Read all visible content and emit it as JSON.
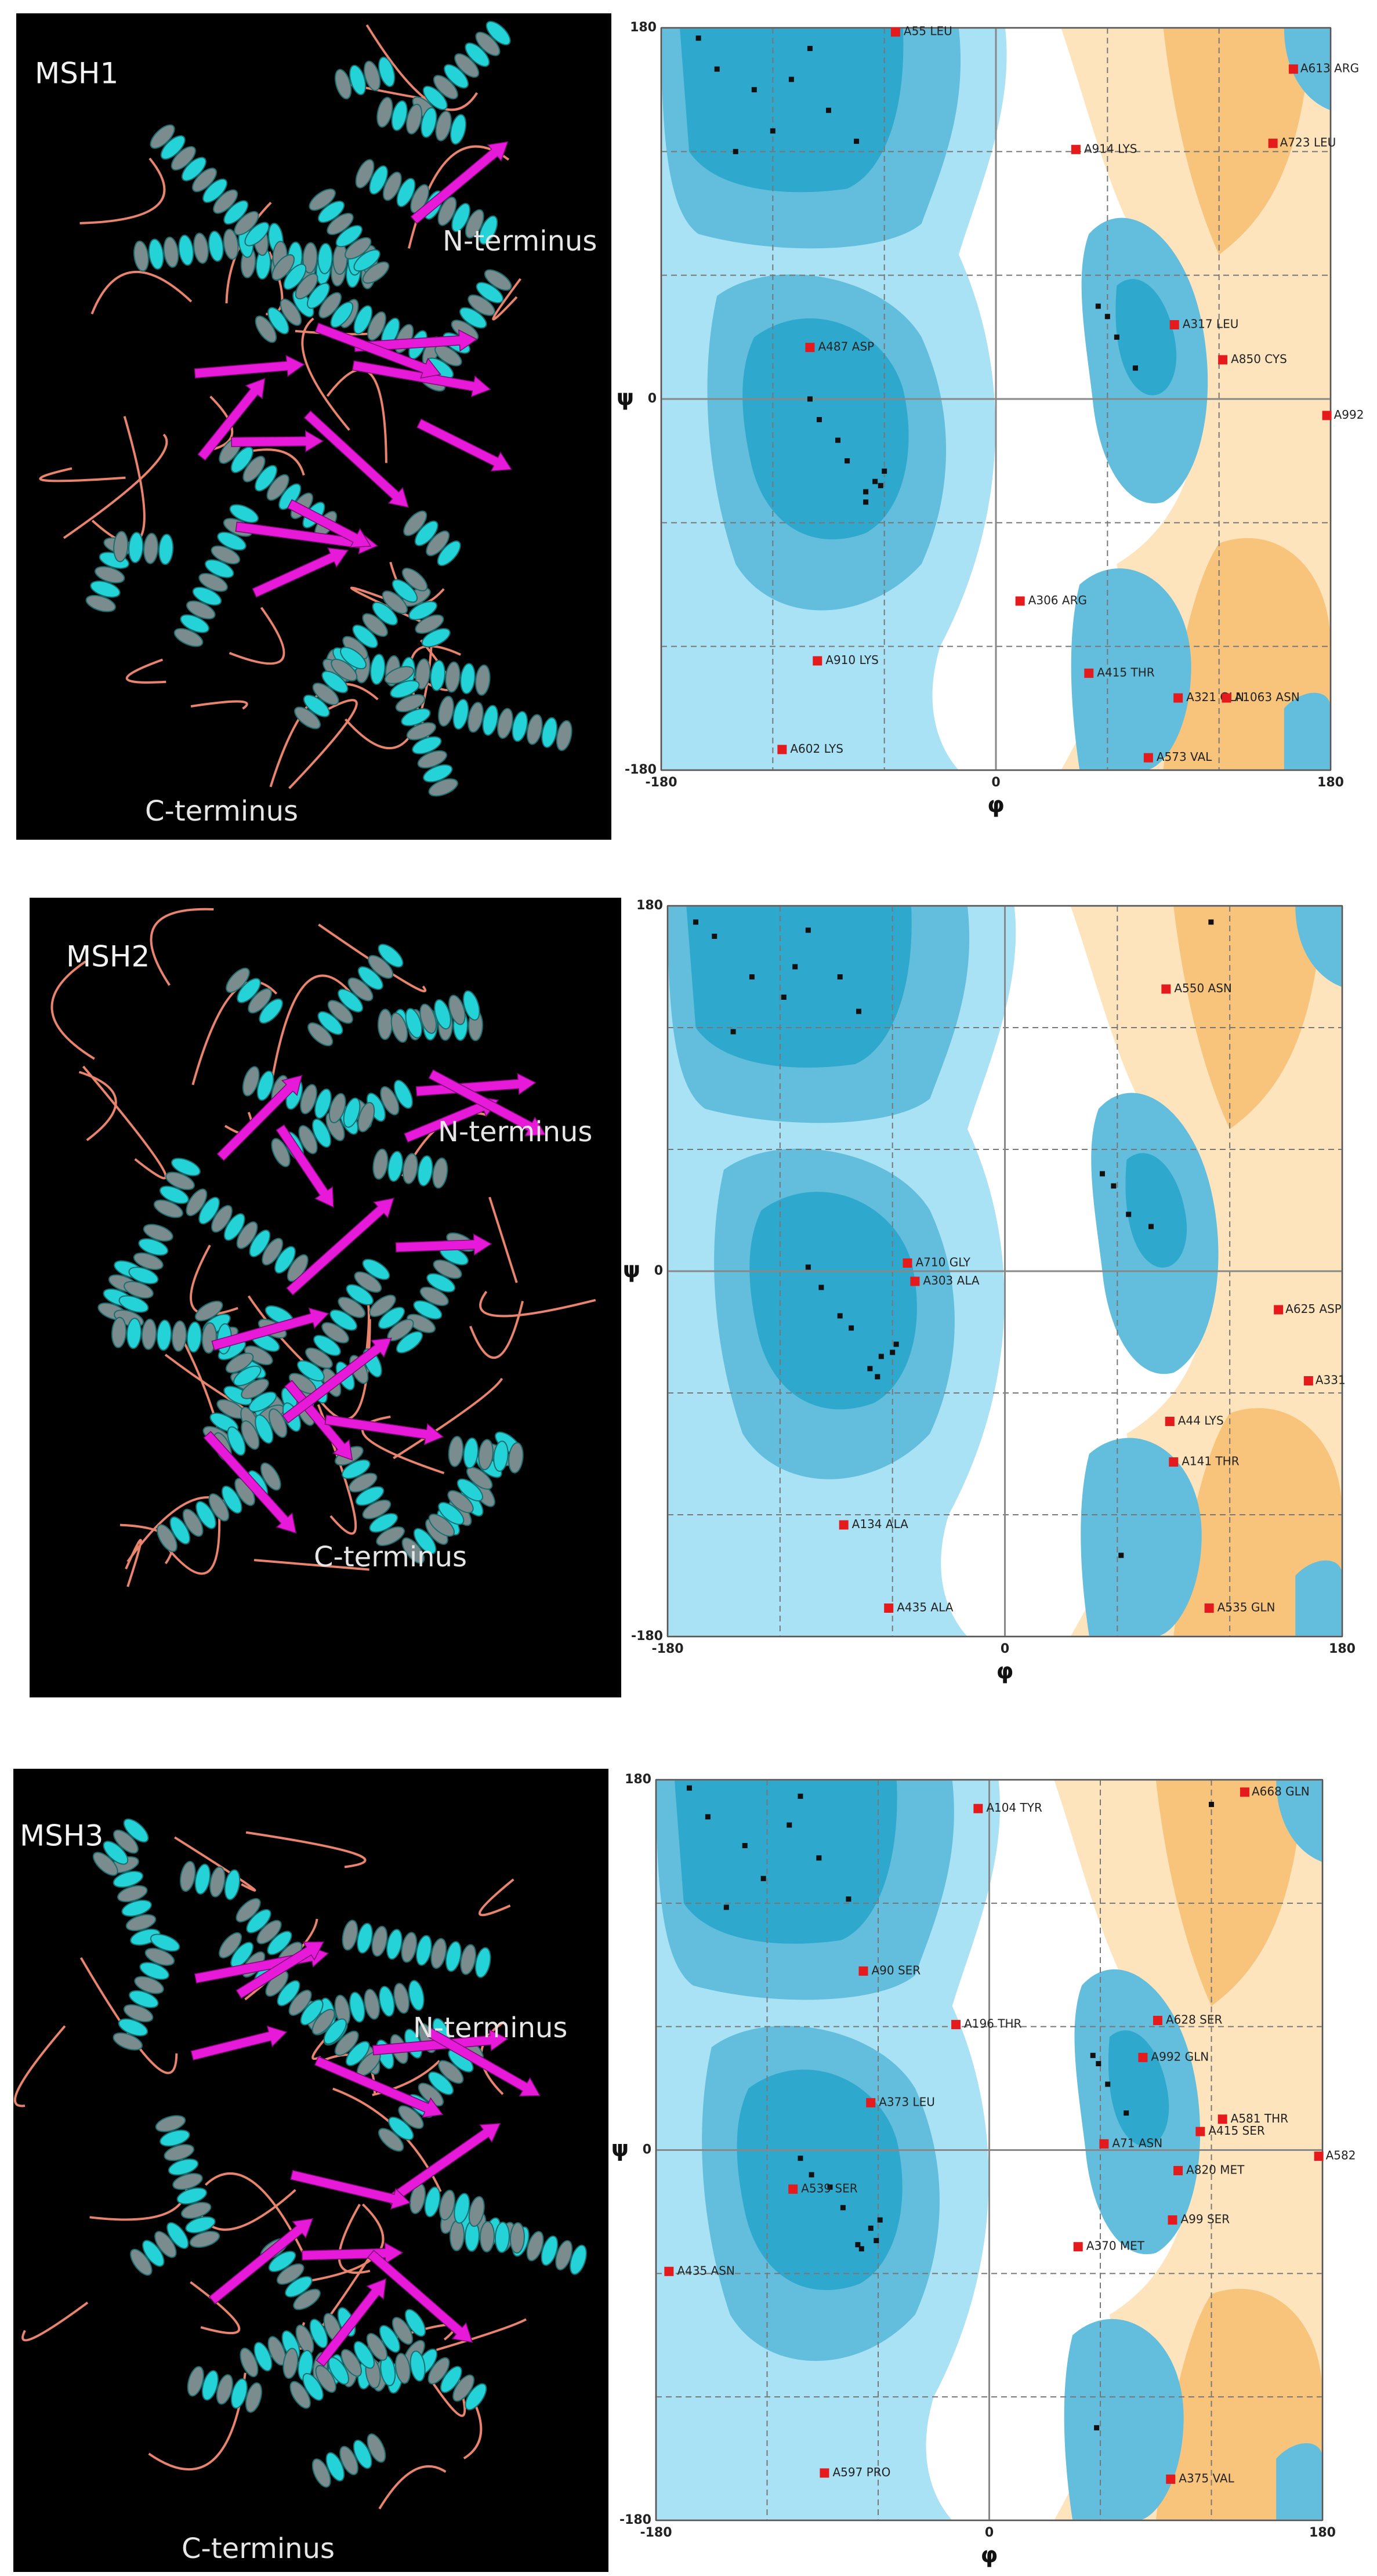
{
  "structures": [
    {
      "label": "MSH1",
      "n_terminus": "N-terminus",
      "c_terminus": "C-terminus"
    },
    {
      "label": "MSH2",
      "n_terminus": "N-terminus",
      "c_terminus": "C-terminus"
    },
    {
      "label": "MSH3",
      "n_terminus": "N-terminus",
      "c_terminus": "C-terminus"
    }
  ],
  "chart_data": [
    {
      "type": "scatter",
      "x_label": "φ",
      "y_label": "ψ",
      "xlim": [
        -180,
        180
      ],
      "ylim": [
        -180,
        180
      ],
      "xticks": [
        -180,
        0,
        180
      ],
      "yticks": [
        -180,
        0,
        180
      ],
      "minor_ticks": [
        -120,
        -60,
        60,
        120
      ],
      "series": [
        {
          "color": "#111111",
          "x": [
            -150,
            -130,
            -120,
            -100,
            -90,
            -75,
            -140,
            -110,
            -160,
            -65,
            -70,
            -60,
            -85,
            -95,
            -70,
            -62,
            -80,
            -100,
            60,
            65,
            55,
            75
          ],
          "y": [
            160,
            150,
            130,
            170,
            140,
            125,
            120,
            155,
            175,
            -40,
            -45,
            -35,
            -20,
            -10,
            -50,
            -42,
            -30,
            0,
            40,
            30,
            45,
            15
          ]
        },
        {
          "color": "#e41a1c",
          "x": [
            -54,
            160,
            149,
            43,
            -100,
            96,
            122,
            178,
            13,
            -96,
            50,
            98,
            124,
            -115,
            82
          ],
          "y": [
            178,
            160,
            124,
            121,
            25,
            36,
            19,
            -8,
            -98,
            -127,
            -133,
            -145,
            -145,
            -170,
            -174
          ],
          "point_labels": [
            "A55 LEU",
            "A613 ARG",
            "A723 LEU",
            "A914 LYS",
            "A487 ASP",
            "A317 LEU",
            "A850 CYS",
            "A992",
            "A306 ARG",
            "A910 LYS",
            "A415 THR",
            "A321 GLN",
            "A1063 ASN",
            "A602 LYS",
            "A573 VAL"
          ]
        }
      ]
    },
    {
      "type": "scatter",
      "x_label": "φ",
      "y_label": "ψ",
      "xlim": [
        -180,
        180
      ],
      "ylim": [
        -180,
        180
      ],
      "xticks": [
        -180,
        0,
        180
      ],
      "yticks": [
        -180,
        0,
        180
      ],
      "minor_ticks": [
        -120,
        -60,
        60,
        120
      ],
      "series": [
        {
          "color": "#111111",
          "x": [
            -155,
            -135,
            -118,
            -105,
            -88,
            -78,
            -145,
            -112,
            -165,
            -66,
            -72,
            -58,
            -88,
            -98,
            -68,
            -60,
            -82,
            -105,
            58,
            66,
            52,
            78,
            110,
            62
          ],
          "y": [
            165,
            145,
            135,
            168,
            145,
            128,
            118,
            150,
            172,
            -42,
            -48,
            -36,
            -22,
            -8,
            -52,
            -40,
            -28,
            2,
            42,
            28,
            48,
            22,
            172,
            -140
          ]
        },
        {
          "color": "#e41a1c",
          "x": [
            86,
            -52,
            -48,
            146,
            162,
            88,
            90,
            -86,
            -62,
            109
          ],
          "y": [
            139,
            4,
            -5,
            -19,
            -54,
            -74,
            -94,
            -125,
            -166,
            -166
          ],
          "point_labels": [
            "A550 ASN",
            "A710 GLY",
            "A303 ALA",
            "A625 ASP",
            "A331",
            "A44 LYS",
            "A141 THR",
            "A134 ALA",
            "A435 ALA",
            "A535 GLN"
          ]
        }
      ]
    },
    {
      "type": "scatter",
      "x_label": "φ",
      "y_label": "ψ",
      "xlim": [
        -180,
        180
      ],
      "ylim": [
        -180,
        180
      ],
      "xticks": [
        -180,
        0,
        180
      ],
      "yticks": [
        -180,
        0,
        180
      ],
      "minor_ticks": [
        -120,
        -60,
        60,
        120
      ],
      "series": [
        {
          "color": "#111111",
          "x": [
            -152,
            -132,
            -122,
            -102,
            -92,
            -76,
            -142,
            -108,
            -162,
            -64,
            -71,
            -59,
            -86,
            -96,
            -69,
            -61,
            -79,
            -102,
            59,
            64,
            56,
            74,
            120,
            58
          ],
          "y": [
            162,
            148,
            132,
            172,
            142,
            122,
            118,
            158,
            176,
            -38,
            -46,
            -34,
            -18,
            -12,
            -48,
            -44,
            -28,
            -4,
            42,
            32,
            46,
            18,
            168,
            -135
          ]
        },
        {
          "color": "#e41a1c",
          "x": [
            138,
            -6,
            -68,
            -18,
            91,
            83,
            -64,
            126,
            114,
            62,
            102,
            178,
            -106,
            99,
            48,
            -173,
            -89,
            98
          ],
          "y": [
            174,
            166,
            87,
            61,
            63,
            45,
            23,
            15,
            9,
            3,
            -10,
            -3,
            -19,
            -34,
            -47,
            -59,
            -157,
            -160
          ],
          "point_labels": [
            "A668 GLN",
            "A104 TYR",
            "A90 SER",
            "A196 THR",
            "A628 SER",
            "A992 GLN",
            "A373 LEU",
            "A581 THR",
            "A415 SER",
            "A71 ASN",
            "A820 MET",
            "A582",
            "A539 SER",
            "A99 SER",
            "A370 MET",
            "A435 ASN",
            "A597 PRO",
            "A375 VAL"
          ]
        }
      ]
    }
  ]
}
